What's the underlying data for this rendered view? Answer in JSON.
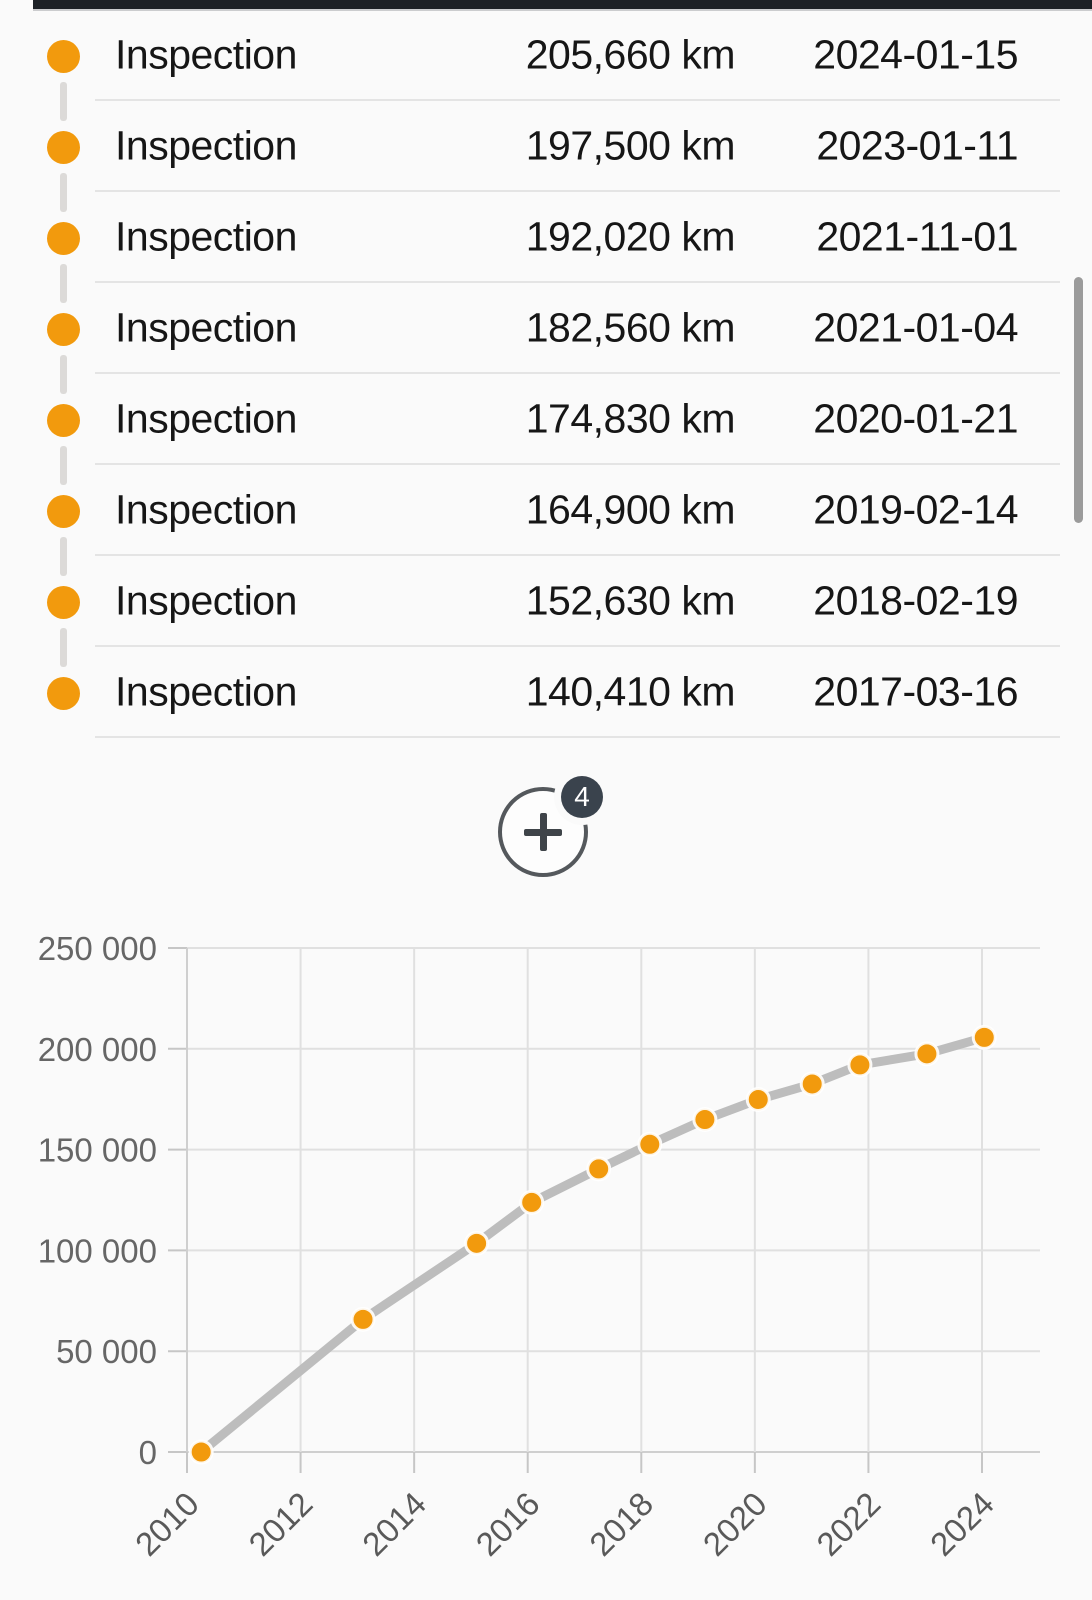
{
  "top_bar": {
    "color": "#1D2126"
  },
  "timeline": {
    "dot_color": "#F29A0D",
    "rows": [
      {
        "label": "Inspection",
        "mileage": "205,660 km",
        "date": "2024-01-15"
      },
      {
        "label": "Inspection",
        "mileage": "197,500 km",
        "date": "2023-01-11"
      },
      {
        "label": "Inspection",
        "mileage": "192,020 km",
        "date": "2021-11-01"
      },
      {
        "label": "Inspection",
        "mileage": "182,560 km",
        "date": "2021-01-04"
      },
      {
        "label": "Inspection",
        "mileage": "174,830 km",
        "date": "2020-01-21"
      },
      {
        "label": "Inspection",
        "mileage": "164,900 km",
        "date": "2019-02-14"
      },
      {
        "label": "Inspection",
        "mileage": "152,630 km",
        "date": "2018-02-19"
      },
      {
        "label": "Inspection",
        "mileage": "140,410 km",
        "date": "2017-03-16"
      }
    ]
  },
  "add_button": {
    "plus_label": "+",
    "badge_count": "4"
  },
  "chart_data": {
    "type": "line",
    "title": "",
    "xlabel": "",
    "ylabel": "",
    "series": [
      {
        "name": "odometer_km",
        "x": [
          2010.25,
          2013.1,
          2015.1,
          2016.07,
          2017.25,
          2018.15,
          2019.12,
          2020.06,
          2021.01,
          2021.85,
          2023.03,
          2024.04
        ],
        "y": [
          0,
          65800,
          103500,
          123800,
          140410,
          152630,
          164900,
          174830,
          182560,
          192020,
          197500,
          205660
        ]
      }
    ],
    "x_tick_values": [
      2010,
      2012,
      2014,
      2016,
      2018,
      2020,
      2022,
      2024
    ],
    "x_tick_labels": [
      "2010",
      "2012",
      "2014",
      "2016",
      "2018",
      "2020",
      "2022",
      "2024"
    ],
    "y_tick_values": [
      250000,
      200000,
      150000,
      100000,
      50000,
      0
    ],
    "y_tick_labels": [
      "250 000",
      "200 000",
      "150 000",
      "100 000",
      "50 000",
      "0"
    ],
    "xlim": [
      2010,
      2025
    ],
    "ylim": [
      0,
      250000
    ],
    "grid": true,
    "legend": false,
    "line_color": "#BDBDBD",
    "point_color": "#F29A0D",
    "point_stroke": "#FFFFFF",
    "grid_color": "#E0E0E0",
    "tick_color": "#C6C6C6",
    "axis_color": "#CFCFCF",
    "label_color": "#666666"
  }
}
